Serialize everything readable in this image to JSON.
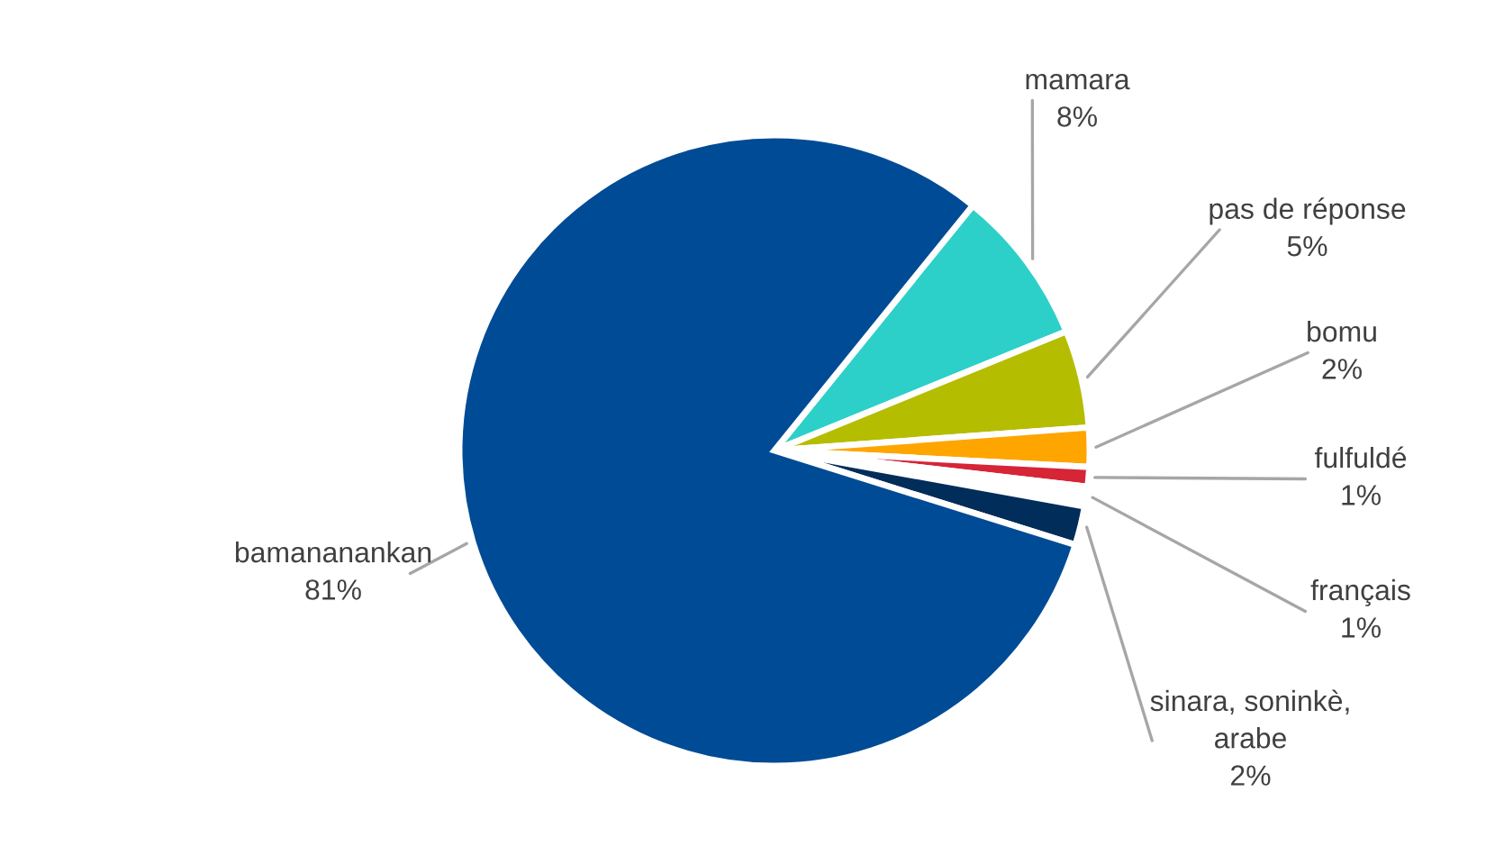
{
  "chart_data": {
    "type": "pie",
    "categories": [
      "mamara",
      "pas de réponse",
      "bomu",
      "fulfuldé",
      "français",
      "sinara, soninkè,\narabe",
      "bamananankan"
    ],
    "values": [
      8,
      5,
      2,
      1,
      1,
      2,
      81
    ],
    "colors": [
      "#2dd0c8",
      "#b5bd00",
      "#ffa500",
      "#d62536",
      "#ffffff",
      "#002d5a",
      "#004b96"
    ],
    "value_labels": [
      "8%",
      "5%",
      "2%",
      "1%",
      "1%",
      "2%",
      "81%"
    ]
  }
}
